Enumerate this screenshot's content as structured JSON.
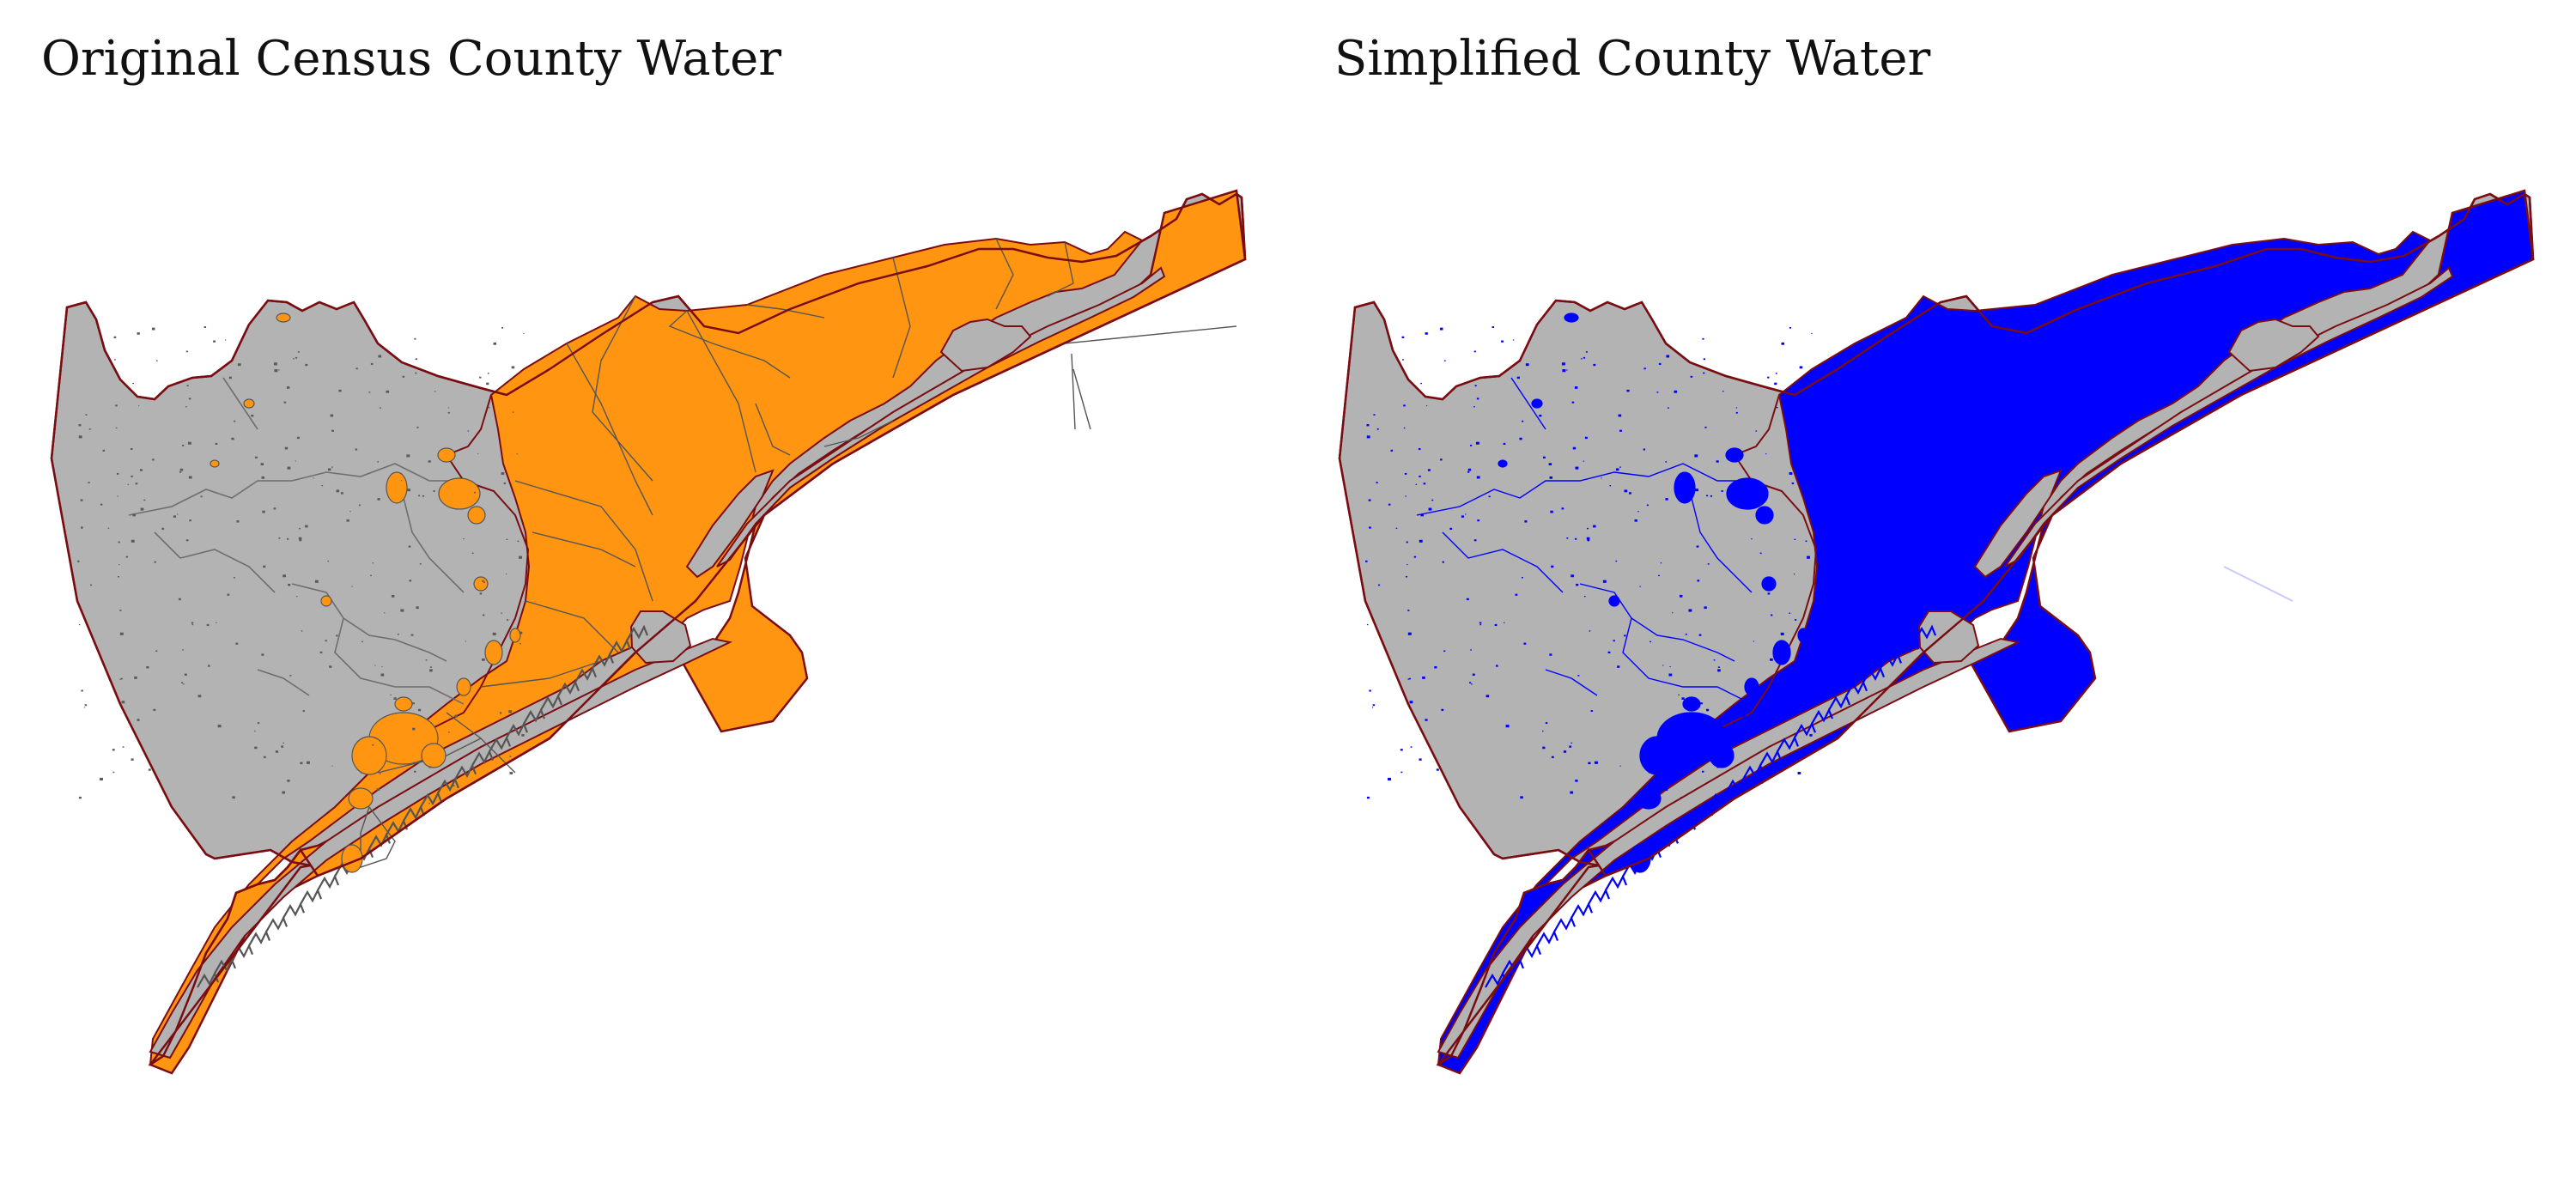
{
  "panels": [
    {
      "title": "Original Census County Water",
      "colors": {
        "land": "#b3b3b3",
        "water": "#ff9510",
        "county_outline": "#7a0d12",
        "water_boundary": "#555555",
        "inland_water": "#555555"
      }
    },
    {
      "title": "Simplified County Water",
      "colors": {
        "land": "#b3b3b3",
        "water": "#0000ff",
        "county_outline": "#7a0d12",
        "water_boundary": "#0000ff",
        "inland_water": "#0000ff"
      }
    }
  ]
}
